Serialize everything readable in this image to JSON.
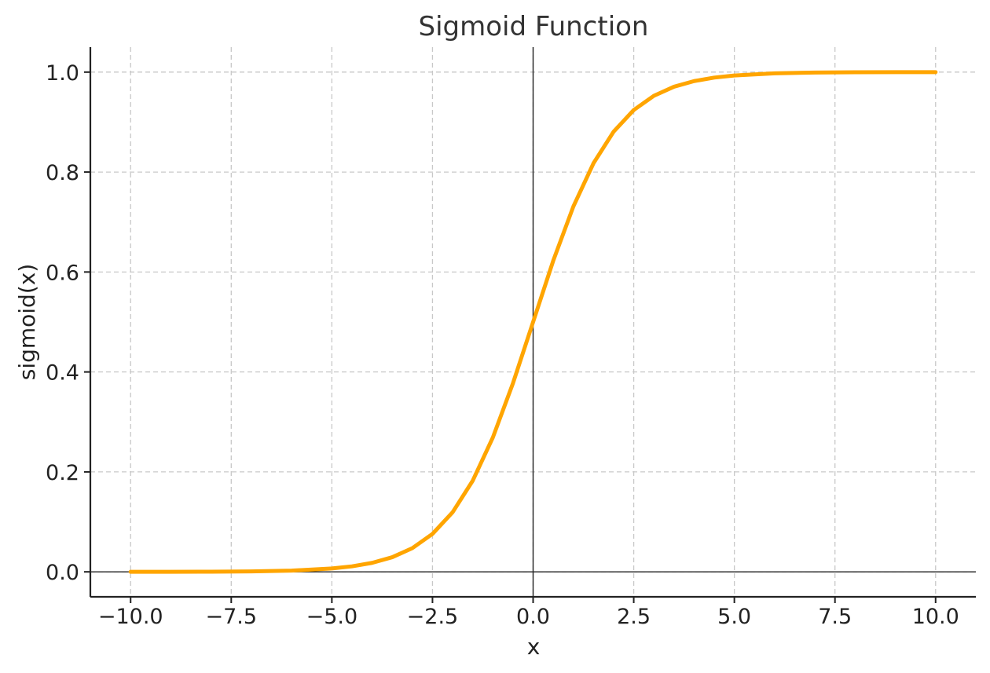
{
  "chart_data": {
    "type": "line",
    "title": "Sigmoid Function",
    "xlabel": "x",
    "ylabel": "sigmoid(x)",
    "xlim": [
      -11,
      11
    ],
    "ylim": [
      -0.05,
      1.05
    ],
    "xticks": [
      -10.0,
      -7.5,
      -5.0,
      -2.5,
      0.0,
      2.5,
      5.0,
      7.5,
      10.0
    ],
    "xtick_labels": [
      "−10.0",
      "−7.5",
      "−5.0",
      "−2.5",
      "0.0",
      "2.5",
      "5.0",
      "7.5",
      "10.0"
    ],
    "yticks": [
      0.0,
      0.2,
      0.4,
      0.6,
      0.8,
      1.0
    ],
    "ytick_labels": [
      "0.0",
      "0.2",
      "0.4",
      "0.6",
      "0.8",
      "1.0"
    ],
    "grid": true,
    "reference_lines": {
      "x": 0,
      "y": 0
    },
    "series": [
      {
        "color": "#FFA500",
        "x": [
          -10.0,
          -9.0,
          -8.0,
          -7.0,
          -6.0,
          -5.0,
          -4.5,
          -4.0,
          -3.5,
          -3.0,
          -2.5,
          -2.0,
          -1.5,
          -1.0,
          -0.5,
          0.0,
          0.5,
          1.0,
          1.5,
          2.0,
          2.5,
          3.0,
          3.5,
          4.0,
          4.5,
          5.0,
          6.0,
          7.0,
          8.0,
          9.0,
          10.0
        ],
        "y": [
          0.0,
          0.0001,
          0.0003,
          0.0009,
          0.0025,
          0.0067,
          0.011,
          0.018,
          0.0293,
          0.0474,
          0.0759,
          0.1192,
          0.1824,
          0.2689,
          0.3775,
          0.5,
          0.6225,
          0.7311,
          0.8176,
          0.8808,
          0.9241,
          0.9526,
          0.9707,
          0.982,
          0.989,
          0.9933,
          0.9975,
          0.9991,
          0.9997,
          0.9999,
          1.0
        ]
      }
    ]
  }
}
